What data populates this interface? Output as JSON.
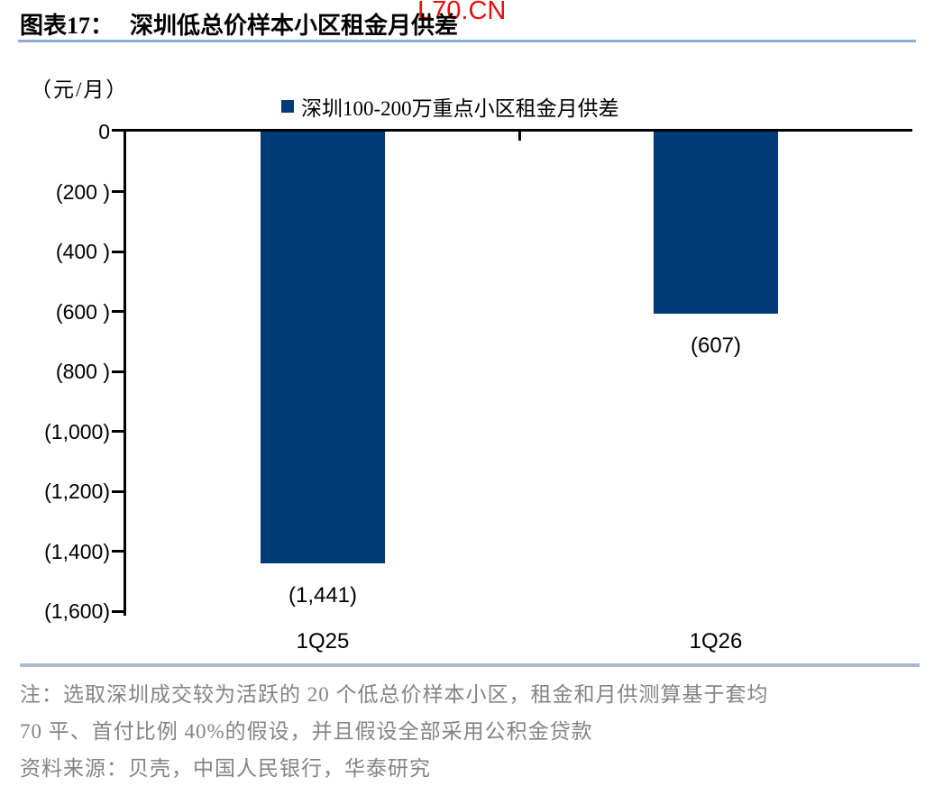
{
  "watermark": {
    "text": "L70.CN",
    "color": "#e8100c"
  },
  "header": {
    "figure_label": "图表17：",
    "title": "深圳低总价样本小区租金月供差"
  },
  "chart": {
    "unit_label": "（元/月）",
    "legend_label": "深圳100-200万重点小区租金月供差",
    "bar_color": "#003a78"
  },
  "chart_data": {
    "type": "bar",
    "title": "深圳低总价样本小区租金月供差",
    "series": [
      {
        "name": "深圳100-200万重点小区租金月供差",
        "values": [
          -1441,
          -607
        ],
        "data_labels": [
          "(1,441)",
          "(607)"
        ]
      }
    ],
    "categories": [
      "1Q25",
      "1Q26"
    ],
    "ylabel": "（元/月）",
    "ylim": [
      -1600,
      0
    ],
    "ytick_step": 200,
    "ytick_labels": [
      "0",
      "(200 )",
      "(400 )",
      "(600 )",
      "(800 )",
      "(1,000)",
      "(1,200)",
      "(1,400)",
      "(1,600)"
    ],
    "grid": false,
    "legend_position": "top",
    "bar_color": "#003a78"
  },
  "footer": {
    "note_line1": "注：选取深圳成交较为活跃的 20 个低总价样本小区，租金和月供测算基于套均",
    "note_line2": "70 平、首付比例 40%的假设，并且假设全部采用公积金贷款",
    "source": "资料来源：贝壳，中国人民银行，华泰研究"
  }
}
